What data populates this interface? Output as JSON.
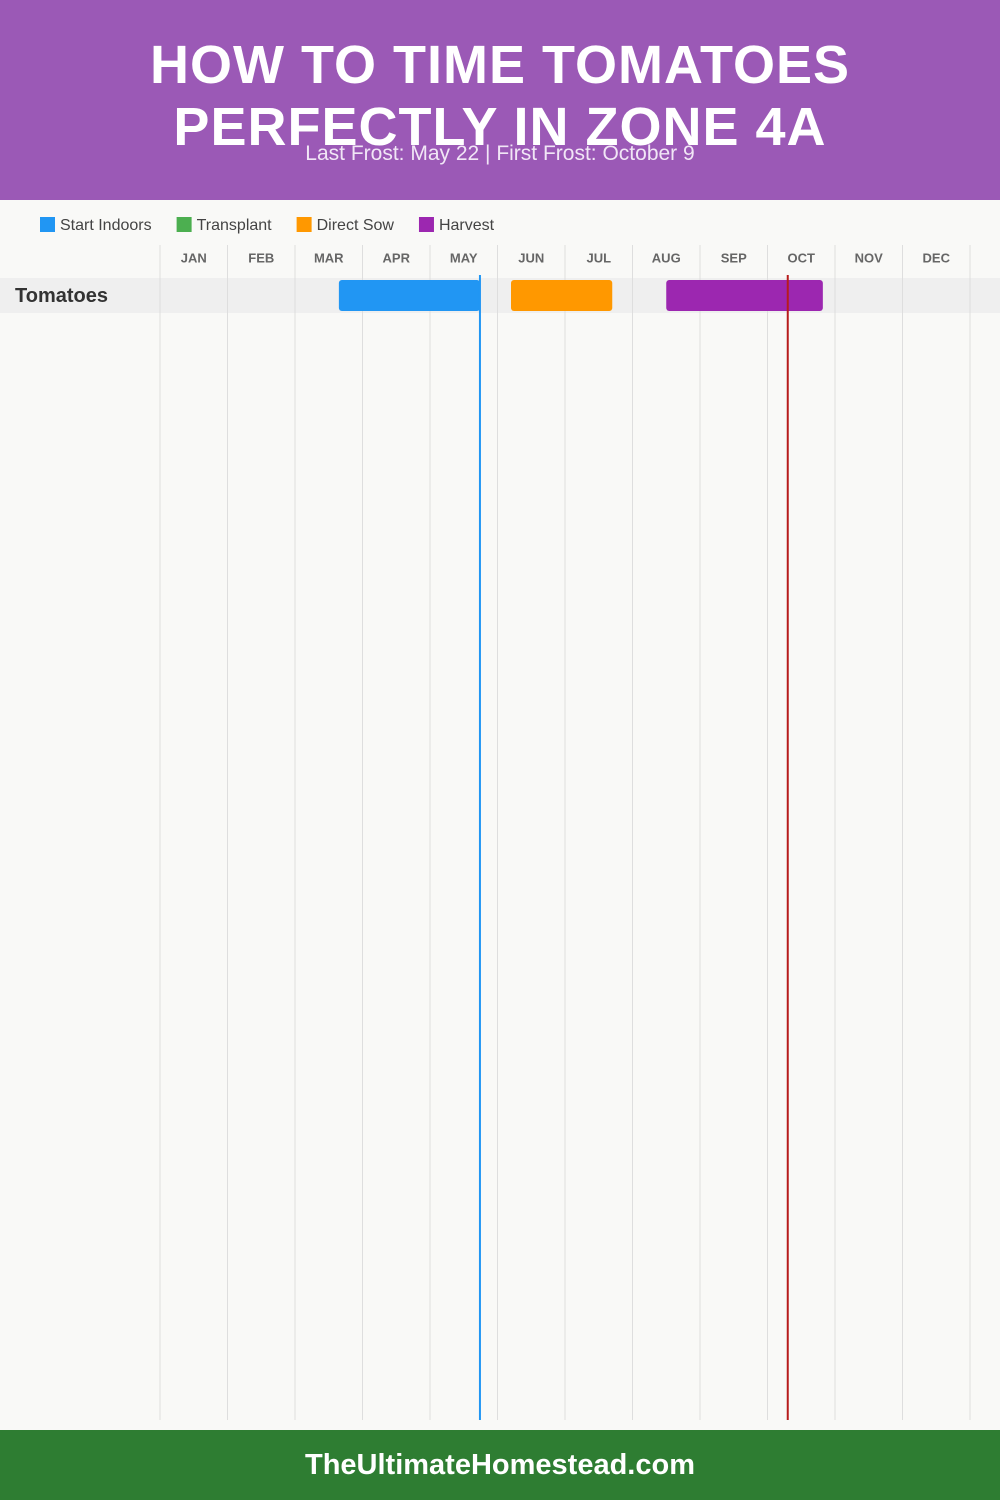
{
  "chart_data": {
    "type": "gantt",
    "title": "HOW TO TIME TOMATOES PERFECTLY IN ZONE 4A",
    "subtitle": "Last Frost: May 22 | First Frost: October 9",
    "categories": [
      "JAN",
      "FEB",
      "MAR",
      "APR",
      "MAY",
      "JUN",
      "JUL",
      "AUG",
      "SEP",
      "OCT",
      "NOV",
      "DEC"
    ],
    "xlim": [
      0,
      12
    ],
    "rows": [
      "Tomatoes"
    ],
    "series": [
      {
        "name": "Start Indoors",
        "color": "#2196f3",
        "ranges": [
          [
            2.65,
            4.74
          ]
        ]
      },
      {
        "name": "Transplant",
        "color": "#4caf50",
        "ranges": []
      },
      {
        "name": "Direct Sow",
        "color": "#ff9800",
        "ranges": [
          [
            5.2,
            6.7
          ]
        ]
      },
      {
        "name": "Harvest",
        "color": "#9c27b0",
        "ranges": [
          [
            7.5,
            9.82
          ]
        ]
      }
    ],
    "markers": [
      {
        "x": 4.74,
        "color": "#2196f3"
      },
      {
        "x": 9.3,
        "color": "#b71c1c"
      }
    ],
    "grid": true
  },
  "footer": "TheUltimateHomestead.com"
}
